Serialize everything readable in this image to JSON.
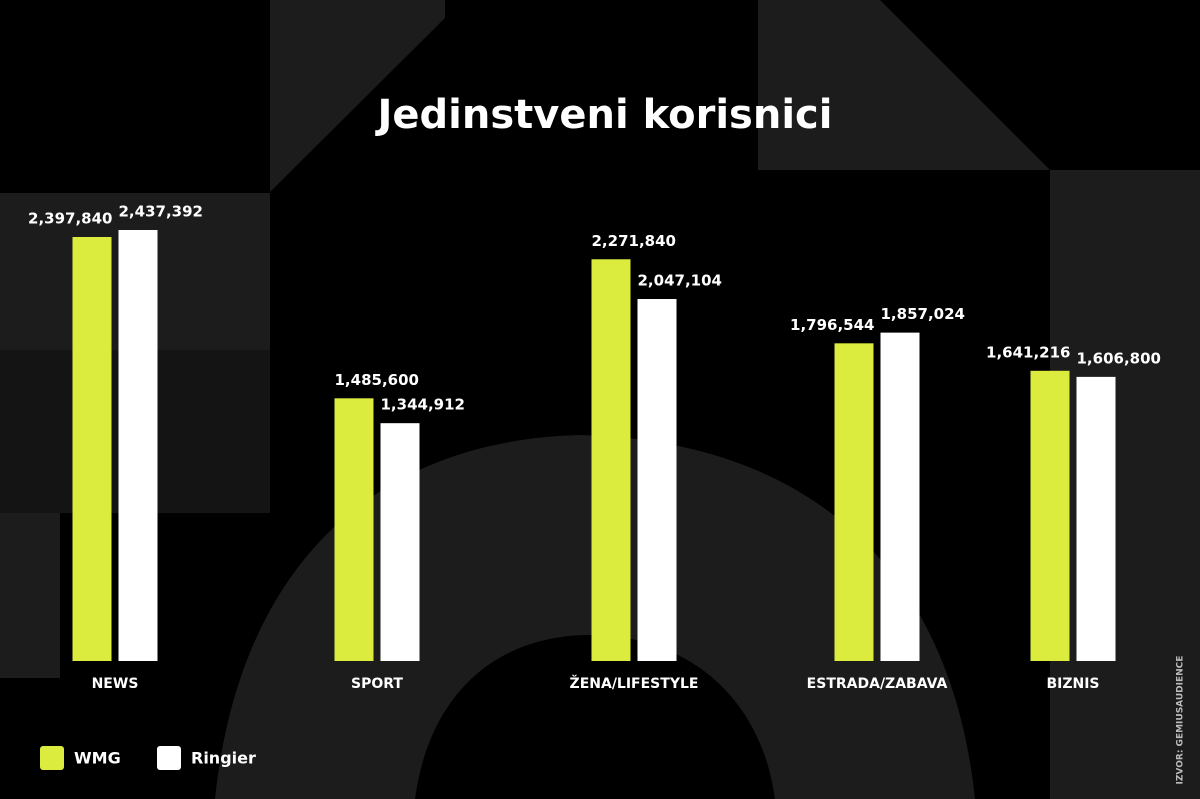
{
  "chart_data": {
    "type": "bar",
    "title": "Jedinstveni korisnici",
    "categories": [
      "NEWS",
      "SPORT",
      "ŽENA/LIFESTYLE",
      "ESTRADA/ZABAVA",
      "BIZNIS"
    ],
    "series": [
      {
        "name": "WMG",
        "color": "#dcec3e",
        "values": [
          2397840,
          1485600,
          2271840,
          1796544,
          1641216
        ],
        "value_labels": [
          "2,397,840",
          "1,485,600",
          "2,271,840",
          "1,796,544",
          "1,641,216"
        ]
      },
      {
        "name": "Ringier",
        "color": "#ffffff",
        "values": [
          2437392,
          1344912,
          2047104,
          1857024,
          1606800
        ],
        "value_labels": [
          "2,437,392",
          "1,344,912",
          "2,047,104",
          "1,857,024",
          "1,606,800"
        ]
      }
    ],
    "source": "IZVOR: GEMIUSAUDIENCE"
  }
}
